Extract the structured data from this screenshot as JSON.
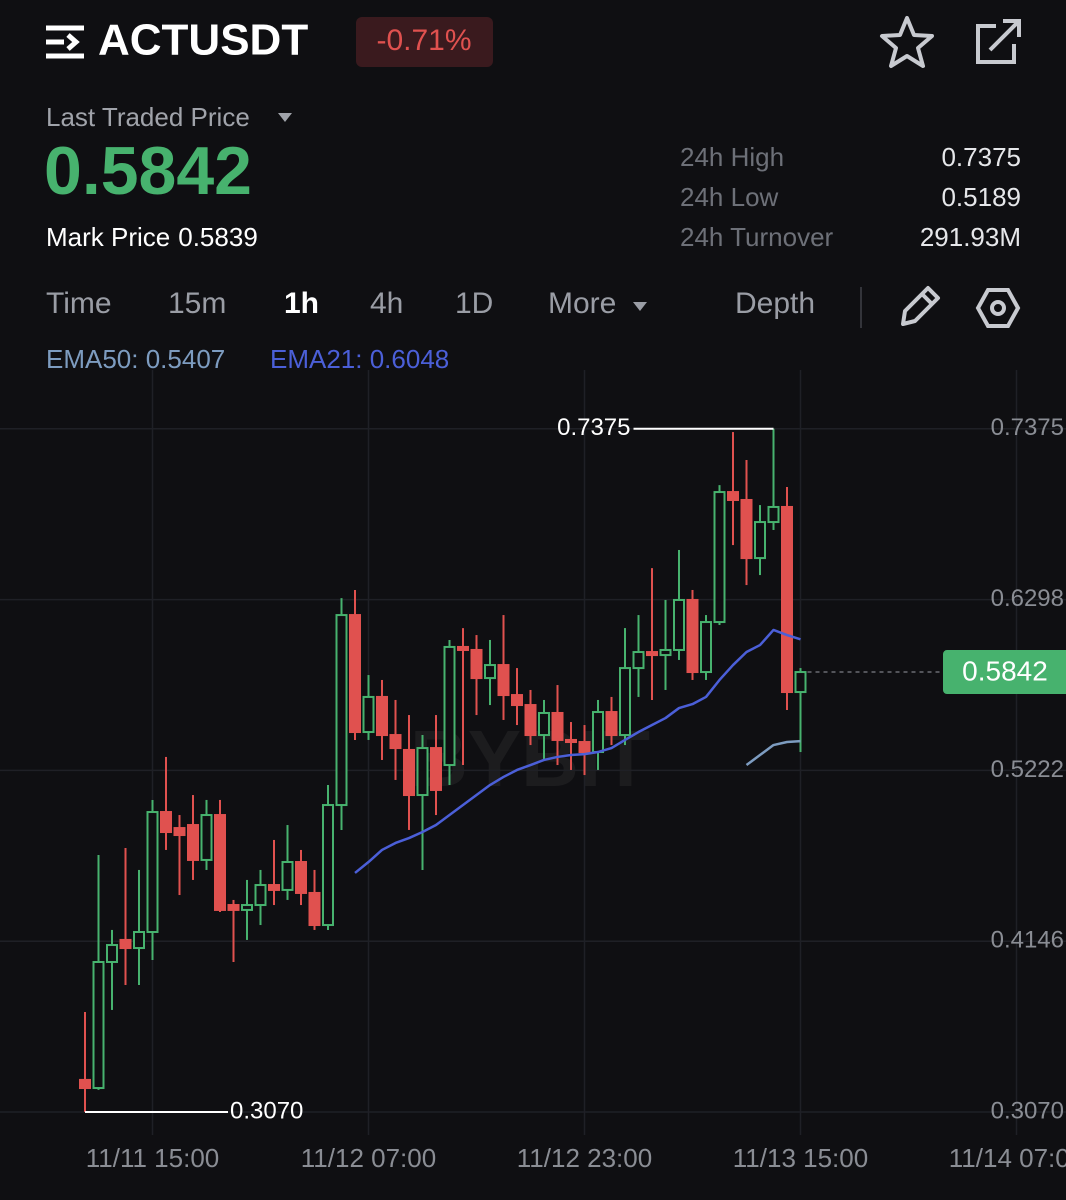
{
  "header": {
    "symbol": "ACTUSDT",
    "change": "-0.71%",
    "last_price_label": "Last Traded Price",
    "last_price": "0.5842",
    "mark_price_label": "Mark Price",
    "mark_price": "0.5839"
  },
  "stats": [
    {
      "label": "24h High",
      "value": "0.7375"
    },
    {
      "label": "24h Low",
      "value": "0.5189"
    },
    {
      "label": "24h Turnover",
      "value": "291.93M"
    }
  ],
  "tabs": [
    "Time",
    "15m",
    "1h",
    "4h",
    "1D",
    "More",
    "Depth"
  ],
  "active_tab": 2,
  "chart_data": {
    "type": "candlestick",
    "categories": [
      null,
      null,
      null,
      null,
      null,
      "11/11 15:00",
      null,
      null,
      null,
      null,
      null,
      null,
      null,
      null,
      null,
      null,
      null,
      null,
      null,
      null,
      null,
      "11/12 07:00",
      null,
      null,
      null,
      null,
      null,
      null,
      null,
      null,
      null,
      null,
      null,
      null,
      null,
      null,
      null,
      "11/12 23:00",
      null,
      null,
      null,
      null,
      null,
      null,
      null,
      null,
      null,
      null,
      null,
      null,
      null,
      null,
      null,
      "11/13 15:00",
      null,
      null,
      null,
      null,
      null,
      null,
      null,
      null,
      null,
      null,
      null,
      null,
      null,
      null,
      null,
      "11/14 07:00"
    ],
    "open": [
      0.3272,
      0.3221,
      0.4015,
      0.4154,
      0.4103,
      0.4204,
      0.496,
      0.4859,
      0.4878,
      0.4658,
      0.4941,
      0.4374,
      0.4343,
      0.4374,
      0.45,
      0.4469,
      0.4645,
      0.445,
      0.4248,
      0.5004,
      0.6201,
      0.5464,
      0.5685,
      0.5445,
      0.5351,
      0.5067,
      0.5363,
      0.5256,
      0.6,
      0.5981,
      0.5804,
      0.5886,
      0.5697,
      0.5634,
      0.5445,
      0.5584,
      0.5414,
      0.5401,
      0.5338,
      0.559,
      0.5445,
      0.5867,
      0.5968,
      0.5949,
      0.5981,
      0.6296,
      0.5842,
      0.6157,
      0.6976,
      0.6926,
      0.656,
      0.6787,
      0.6882,
      0.5716,
      null,
      null,
      null,
      null,
      null,
      null,
      null,
      null,
      null,
      null,
      null,
      null,
      null,
      null,
      null,
      null
    ],
    "high": [
      0.37,
      0.4689,
      0.4217,
      0.4733,
      0.4595,
      0.5036,
      0.5307,
      0.4941,
      0.5067,
      0.5036,
      0.5036,
      0.4406,
      0.4532,
      0.4595,
      0.4784,
      0.4878,
      0.4721,
      0.4595,
      0.513,
      0.6308,
      0.6359,
      0.5823,
      0.5792,
      0.5666,
      0.5571,
      0.5445,
      0.5571,
      0.6044,
      0.6119,
      0.6075,
      0.6044,
      0.6201,
      0.5867,
      0.5729,
      0.5666,
      0.576,
      0.5527,
      0.5508,
      0.5666,
      0.5685,
      0.6119,
      0.6201,
      0.6497,
      0.6296,
      0.6611,
      0.6359,
      0.6201,
      0.702,
      0.7354,
      0.7178,
      0.6894,
      0.7375,
      0.7008,
      0.5867,
      null,
      null,
      null,
      null,
      null,
      null,
      null,
      null,
      null,
      null,
      null,
      null,
      null,
      null,
      null,
      null
    ],
    "low": [
      0.307,
      0.3209,
      0.3713,
      0.387,
      0.387,
      0.4028,
      0.4721,
      0.4437,
      0.4532,
      0.4595,
      0.433,
      0.4015,
      0.4154,
      0.4248,
      0.4374,
      0.4406,
      0.4374,
      0.4217,
      0.4217,
      0.4847,
      0.5414,
      0.5414,
      0.5288,
      0.5162,
      0.4847,
      0.4595,
      0.4941,
      0.513,
      0.5256,
      0.5571,
      0.5634,
      0.554,
      0.5508,
      0.5382,
      0.5288,
      0.5256,
      0.5225,
      0.5193,
      0.5225,
      0.5382,
      0.5382,
      0.5685,
      0.5666,
      0.5729,
      0.5918,
      0.5792,
      0.5792,
      0.6138,
      0.6642,
      0.639,
      0.6453,
      0.6737,
      0.5603,
      0.5338,
      null,
      null,
      null,
      null,
      null,
      null,
      null,
      null,
      null,
      null,
      null,
      null,
      null,
      null,
      null,
      null
    ],
    "close": [
      0.3221,
      0.4015,
      0.4122,
      0.4103,
      0.4204,
      0.496,
      0.4834,
      0.4815,
      0.4658,
      0.4941,
      0.4343,
      0.4343,
      0.4374,
      0.45,
      0.4469,
      0.4645,
      0.445,
      0.4248,
      0.5004,
      0.6201,
      0.5464,
      0.5685,
      0.5445,
      0.5363,
      0.5067,
      0.5363,
      0.5099,
      0.6,
      0.5981,
      0.5804,
      0.5886,
      0.5697,
      0.5634,
      0.5445,
      0.5584,
      0.5414,
      0.5401,
      0.5338,
      0.559,
      0.5445,
      0.5867,
      0.5968,
      0.5949,
      0.5981,
      0.6296,
      0.5842,
      0.6157,
      0.6976,
      0.6926,
      0.656,
      0.6787,
      0.6882,
      0.5716,
      0.5842,
      null,
      null,
      null,
      null,
      null,
      null,
      null,
      null,
      null,
      null,
      null,
      null,
      null,
      null,
      null,
      null
    ],
    "up_color": "#47b26e",
    "down_color": "#e0514f",
    "series": [
      {
        "name": "EMA50: 0.5407",
        "color": "#7d9cc0",
        "values": [
          null,
          null,
          null,
          null,
          null,
          null,
          null,
          null,
          null,
          null,
          null,
          null,
          null,
          null,
          null,
          null,
          null,
          null,
          null,
          null,
          null,
          null,
          null,
          null,
          null,
          null,
          null,
          null,
          null,
          null,
          null,
          null,
          null,
          null,
          null,
          null,
          null,
          null,
          null,
          null,
          null,
          null,
          null,
          null,
          null,
          null,
          null,
          null,
          null,
          0.5256,
          0.5319,
          0.5382,
          0.5401,
          0.5407,
          null,
          null,
          null,
          null,
          null,
          null,
          null,
          null,
          null,
          null,
          null,
          null,
          null,
          null,
          null,
          null
        ]
      },
      {
        "name": "EMA21: 0.6048",
        "color": "#4b5fd8",
        "values": [
          null,
          null,
          null,
          null,
          null,
          null,
          null,
          null,
          null,
          null,
          null,
          null,
          null,
          null,
          null,
          null,
          null,
          null,
          null,
          null,
          0.4576,
          0.4645,
          0.4721,
          0.4765,
          0.4796,
          0.4834,
          0.4878,
          0.4941,
          0.5004,
          0.5067,
          0.513,
          0.5181,
          0.5225,
          0.5256,
          0.5288,
          0.5307,
          0.5319,
          0.5325,
          0.5338,
          0.5363,
          0.5414,
          0.5464,
          0.5508,
          0.5552,
          0.5615,
          0.564,
          0.5685,
          0.5792,
          0.5886,
          0.5968,
          0.6012,
          0.6107,
          0.6075,
          0.6048,
          null,
          null,
          null,
          null,
          null,
          null,
          null,
          null,
          null,
          null,
          null,
          null,
          null,
          null,
          null,
          null
        ]
      }
    ],
    "ylim": [
      0.2925,
      0.7745
    ],
    "yticks": [
      {
        "value": 0.307,
        "label": "0.3070"
      },
      0.4146,
      0.5222,
      0.6298,
      0.7375
    ],
    "grid": true,
    "annotations": [
      {
        "text": "0.7375",
        "value": 0.7375
      },
      {
        "text": "0.3070",
        "value": 0.307
      }
    ],
    "current_price": {
      "value": 0.5842,
      "label": "0.5842",
      "color": "#47b26e"
    },
    "watermark": "BYBIT"
  }
}
